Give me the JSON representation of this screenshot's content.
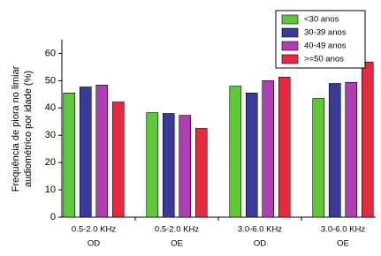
{
  "chart_data": {
    "type": "bar",
    "ylabel": [
      "Frequência de piora no limiar",
      "audiométrico por idade (%)"
    ],
    "categories": [
      [
        "0.5-2.0 KHz",
        "OD"
      ],
      [
        "0.5-2.0 KHz",
        "OE"
      ],
      [
        "3.0-6.0 KHz",
        "OD"
      ],
      [
        "3.0-6.0 KHz",
        "OE"
      ]
    ],
    "series": [
      {
        "name": "<30 anos",
        "color": "#5fc83a",
        "values": [
          45.5,
          38.3,
          48,
          43.5
        ]
      },
      {
        "name": "30-39 anos",
        "color": "#3a3a9c",
        "values": [
          47.7,
          38,
          45.5,
          49
        ]
      },
      {
        "name": "40-49 anos",
        "color": "#b23cb3",
        "values": [
          48.4,
          37.3,
          50,
          49.4
        ]
      },
      {
        "name": ">=50 anos",
        "color": "#e8283c",
        "values": [
          42.2,
          32.5,
          51.3,
          56.8
        ]
      }
    ],
    "ylim": [
      0,
      65
    ],
    "yticks": [
      0,
      10,
      20,
      30,
      40,
      50,
      60
    ],
    "legend": "upper-right"
  }
}
